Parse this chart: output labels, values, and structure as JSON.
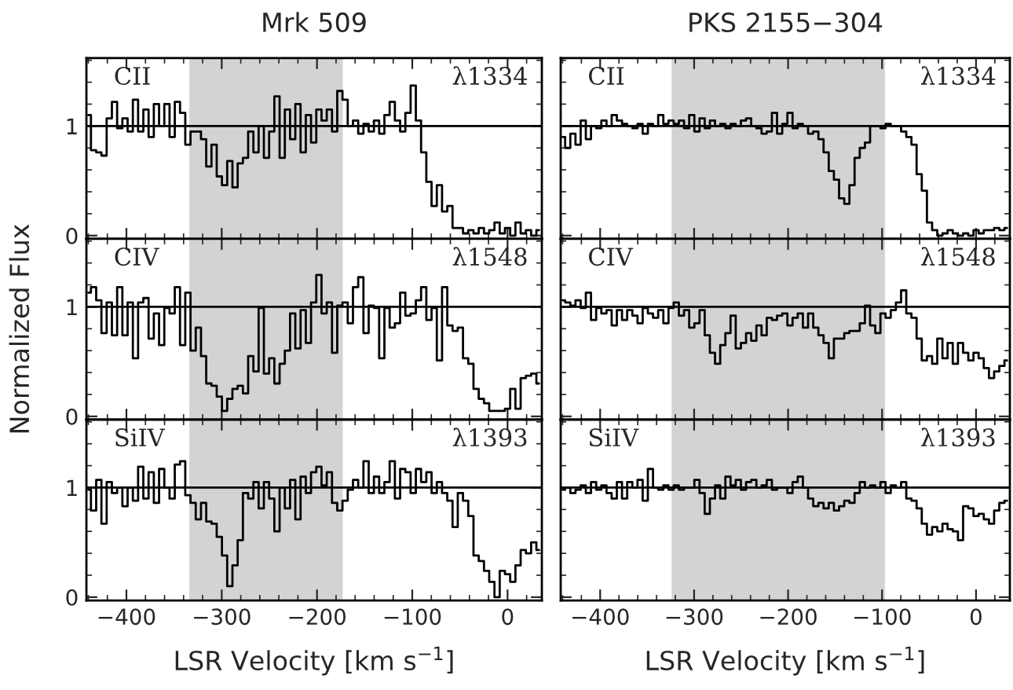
{
  "chart_data": [
    {
      "type": "step",
      "title": "Mrk 509",
      "tick_labels": "y",
      "xlim": [
        -442,
        36
      ],
      "ylim": [
        -0.03,
        1.62
      ],
      "xticks": [
        -400,
        -300,
        -200,
        -100,
        0
      ],
      "yticks": [
        0,
        1
      ],
      "ref_lines": [
        {
          "axis": "y",
          "value": 1,
          "color": "#000000"
        }
      ],
      "bands": [
        {
          "axis": "x",
          "from": -334,
          "to": -173,
          "color": "#d3d3d3"
        }
      ],
      "annotations": [
        "CII",
        "λ1334"
      ],
      "x": [
        -440,
        -434.5,
        -429,
        -423.5,
        -418,
        -412.5,
        -407,
        -401.5,
        -396,
        -390.5,
        -385,
        -379.5,
        -374,
        -368.5,
        -363,
        -357.5,
        -352,
        -346.5,
        -341,
        -335.5,
        -330,
        -324.5,
        -319,
        -313.5,
        -308,
        -302.5,
        -297,
        -291.5,
        -286,
        -280.5,
        -275,
        -269.5,
        -264,
        -258.5,
        -253,
        -247.5,
        -242,
        -236.5,
        -231,
        -225.5,
        -220,
        -214.5,
        -209,
        -203.5,
        -198,
        -192.5,
        -187,
        -181.5,
        -176,
        -170.5,
        -165,
        -159.5,
        -154,
        -148.5,
        -143,
        -137.5,
        -132,
        -126.5,
        -121,
        -115.5,
        -110,
        -104.5,
        -99,
        -93.5,
        -88,
        -82.5,
        -77,
        -71.5,
        -66,
        -60.5,
        -55,
        -49.5,
        -44,
        -38.5,
        -33,
        -27.5,
        -22,
        -16.5,
        -11,
        -5.5,
        0,
        5.5,
        11,
        16.5,
        22,
        27.5,
        33
      ],
      "series": [
        {
          "color": "#000000",
          "values": [
            1.1,
            0.78,
            0.76,
            0.73,
            1.07,
            1.22,
            0.98,
            1.07,
            0.95,
            1.24,
            0.95,
            1.15,
            0.9,
            1.2,
            1.0,
            1.2,
            0.9,
            1.22,
            1.12,
            0.83,
            0.95,
            0.95,
            0.88,
            0.63,
            0.83,
            0.54,
            0.46,
            0.68,
            0.44,
            0.66,
            0.71,
            0.95,
            0.76,
            1.0,
            0.71,
            0.95,
            1.27,
            0.71,
            1.15,
            0.88,
            1.2,
            0.76,
            1.1,
            0.85,
            1.15,
            1.05,
            1.15,
            0.95,
            1.32,
            1.24,
            1.0,
            1.05,
            0.93,
            1.02,
            0.95,
            1.05,
            0.93,
            1.1,
            1.22,
            1.05,
            0.95,
            1.12,
            1.37,
            1.05,
            0.76,
            0.49,
            0.27,
            0.46,
            0.22,
            0.27,
            0.07,
            0.07,
            0.02,
            0.05,
            0.02,
            0.07,
            0.02,
            0.05,
            0.12,
            0.02,
            0.07,
            0.0,
            0.12,
            0.02,
            0.05,
            0.0,
            0.05
          ]
        }
      ]
    },
    {
      "type": "step",
      "title": "PKS 2155−304",
      "tick_labels": false,
      "xlim": [
        -442,
        36
      ],
      "ylim": [
        -0.03,
        1.62
      ],
      "xticks": [
        -400,
        -300,
        -200,
        -100,
        0
      ],
      "yticks": [
        0,
        1
      ],
      "ref_lines": [
        {
          "axis": "y",
          "value": 1,
          "color": "#000000"
        }
      ],
      "bands": [
        {
          "axis": "x",
          "from": -324,
          "to": -97,
          "color": "#d3d3d3"
        }
      ],
      "annotations": [
        "CII",
        "λ1334"
      ],
      "x": [
        -440,
        -434.5,
        -429,
        -423.5,
        -418,
        -412.5,
        -407,
        -401.5,
        -396,
        -390.5,
        -385,
        -379.5,
        -374,
        -368.5,
        -363,
        -357.5,
        -352,
        -346.5,
        -341,
        -335.5,
        -330,
        -324.5,
        -319,
        -313.5,
        -308,
        -302.5,
        -297,
        -291.5,
        -286,
        -280.5,
        -275,
        -269.5,
        -264,
        -258.5,
        -253,
        -247.5,
        -242,
        -236.5,
        -231,
        -225.5,
        -220,
        -214.5,
        -209,
        -203.5,
        -198,
        -192.5,
        -187,
        -181.5,
        -176,
        -170.5,
        -165,
        -159.5,
        -154,
        -148.5,
        -143,
        -137.5,
        -132,
        -126.5,
        -121,
        -115.5,
        -110,
        -104.5,
        -99,
        -93.5,
        -88,
        -82.5,
        -77,
        -71.5,
        -66,
        -60.5,
        -55,
        -49.5,
        -44,
        -38.5,
        -33,
        -27.5,
        -22,
        -16.5,
        -11,
        -5.5,
        0,
        5.5,
        11,
        16.5,
        22,
        27.5,
        33
      ],
      "series": [
        {
          "color": "#000000",
          "values": [
            0.9,
            0.8,
            0.93,
            0.83,
            1.05,
            0.88,
            1.0,
            0.98,
            1.05,
            1.0,
            1.1,
            1.05,
            1.02,
            1.0,
            0.98,
            1.02,
            0.93,
            1.02,
            1.0,
            1.1,
            1.02,
            1.05,
            1.02,
            1.05,
            0.98,
            1.1,
            0.95,
            1.07,
            0.98,
            1.05,
            1.0,
            1.02,
            0.98,
            1.02,
            1.0,
            1.05,
            1.07,
            1.0,
            0.98,
            0.93,
            0.95,
            1.12,
            0.93,
            1.02,
            1.12,
            0.98,
            1.02,
            1.0,
            0.93,
            0.95,
            0.88,
            0.76,
            0.59,
            0.51,
            0.34,
            0.29,
            0.46,
            0.71,
            0.8,
            0.85,
            1.0,
            1.0,
            0.98,
            1.02,
            1.0,
            1.0,
            0.95,
            0.9,
            0.83,
            0.56,
            0.41,
            0.12,
            0.05,
            0.0,
            0.02,
            0.05,
            0.02,
            0.0,
            0.02,
            0.0,
            0.05,
            0.02,
            0.05,
            0.05,
            0.07,
            0.05,
            0.07
          ]
        }
      ]
    },
    {
      "type": "step",
      "ylabel": "Normalized Flux",
      "tick_labels": "y",
      "xlim": [
        -442,
        36
      ],
      "ylim": [
        -0.03,
        1.62
      ],
      "xticks": [
        -400,
        -300,
        -200,
        -100,
        0
      ],
      "yticks": [
        0,
        1
      ],
      "ref_lines": [
        {
          "axis": "y",
          "value": 1,
          "color": "#000000"
        }
      ],
      "bands": [
        {
          "axis": "x",
          "from": -334,
          "to": -173,
          "color": "#d3d3d3"
        }
      ],
      "annotations": [
        "CIV",
        "λ1548"
      ],
      "x": [
        -440,
        -434.5,
        -429,
        -423.5,
        -418,
        -412.5,
        -407,
        -401.5,
        -396,
        -390.5,
        -385,
        -379.5,
        -374,
        -368.5,
        -363,
        -357.5,
        -352,
        -346.5,
        -341,
        -335.5,
        -330,
        -324.5,
        -319,
        -313.5,
        -308,
        -302.5,
        -297,
        -291.5,
        -286,
        -280.5,
        -275,
        -269.5,
        -264,
        -258.5,
        -253,
        -247.5,
        -242,
        -236.5,
        -231,
        -225.5,
        -220,
        -214.5,
        -209,
        -203.5,
        -198,
        -192.5,
        -187,
        -181.5,
        -176,
        -170.5,
        -165,
        -159.5,
        -154,
        -148.5,
        -143,
        -137.5,
        -132,
        -126.5,
        -121,
        -115.5,
        -110,
        -104.5,
        -99,
        -93.5,
        -88,
        -82.5,
        -77,
        -71.5,
        -66,
        -60.5,
        -55,
        -49.5,
        -44,
        -38.5,
        -33,
        -27.5,
        -22,
        -16.5,
        -11,
        -5.5,
        0,
        5.5,
        11,
        16.5,
        22,
        27.5,
        33
      ],
      "series": [
        {
          "color": "#000000",
          "values": [
            1.13,
            1.18,
            1.06,
            0.76,
            1.04,
            0.74,
            1.18,
            0.74,
            1.04,
            0.53,
            1.04,
            1.08,
            0.71,
            0.94,
            0.65,
            0.99,
            0.94,
            1.18,
            0.65,
            1.13,
            0.6,
            0.81,
            0.55,
            0.3,
            0.28,
            0.18,
            0.05,
            0.16,
            0.25,
            0.28,
            0.21,
            0.55,
            0.41,
            0.99,
            0.39,
            0.53,
            0.3,
            0.48,
            0.6,
            0.94,
            0.62,
            0.97,
            0.67,
            1.04,
            1.29,
            0.94,
            1.04,
            0.58,
            1.01,
            1.04,
            0.85,
            1.18,
            1.27,
            0.76,
            1.01,
            0.99,
            0.53,
            0.99,
            0.81,
            0.85,
            1.13,
            0.92,
            0.94,
            1.06,
            1.18,
            0.88,
            0.99,
            0.51,
            1.18,
            0.83,
            0.78,
            0.81,
            0.53,
            0.48,
            0.25,
            0.16,
            0.12,
            0.05,
            0.05,
            0.05,
            0.07,
            0.25,
            0.07,
            0.35,
            0.37,
            0.39,
            0.3
          ]
        }
      ]
    },
    {
      "type": "step",
      "tick_labels": false,
      "xlim": [
        -442,
        36
      ],
      "ylim": [
        -0.03,
        1.62
      ],
      "xticks": [
        -400,
        -300,
        -200,
        -100,
        0
      ],
      "yticks": [
        0,
        1
      ],
      "ref_lines": [
        {
          "axis": "y",
          "value": 1,
          "color": "#000000"
        }
      ],
      "bands": [
        {
          "axis": "x",
          "from": -324,
          "to": -97,
          "color": "#d3d3d3"
        }
      ],
      "annotations": [
        "CIV",
        "λ1548"
      ],
      "x": [
        -440,
        -434.5,
        -429,
        -423.5,
        -418,
        -412.5,
        -407,
        -401.5,
        -396,
        -390.5,
        -385,
        -379.5,
        -374,
        -368.5,
        -363,
        -357.5,
        -352,
        -346.5,
        -341,
        -335.5,
        -330,
        -324.5,
        -319,
        -313.5,
        -308,
        -302.5,
        -297,
        -291.5,
        -286,
        -280.5,
        -275,
        -269.5,
        -264,
        -258.5,
        -253,
        -247.5,
        -242,
        -236.5,
        -231,
        -225.5,
        -220,
        -214.5,
        -209,
        -203.5,
        -198,
        -192.5,
        -187,
        -181.5,
        -176,
        -170.5,
        -165,
        -159.5,
        -154,
        -148.5,
        -143,
        -137.5,
        -132,
        -126.5,
        -121,
        -115.5,
        -110,
        -104.5,
        -99,
        -93.5,
        -88,
        -82.5,
        -77,
        -71.5,
        -66,
        -60.5,
        -55,
        -49.5,
        -44,
        -38.5,
        -33,
        -27.5,
        -22,
        -16.5,
        -11,
        -5.5,
        0,
        5.5,
        11,
        16.5,
        22,
        27.5,
        33
      ],
      "series": [
        {
          "color": "#000000",
          "values": [
            1.06,
            1.04,
            1.01,
            1.06,
            0.99,
            1.13,
            0.88,
            0.99,
            0.94,
            0.97,
            0.83,
            0.97,
            0.88,
            0.97,
            0.92,
            0.85,
            0.99,
            0.94,
            0.9,
            0.97,
            0.85,
            0.99,
            1.04,
            0.92,
            0.97,
            0.81,
            0.85,
            0.97,
            0.74,
            0.58,
            0.48,
            0.65,
            0.76,
            0.92,
            0.62,
            0.67,
            0.76,
            0.69,
            0.83,
            0.74,
            0.9,
            0.88,
            0.92,
            0.94,
            0.83,
            0.9,
            0.94,
            0.81,
            0.94,
            0.81,
            0.74,
            0.67,
            0.53,
            0.71,
            0.71,
            0.76,
            0.78,
            0.78,
            0.85,
            1.01,
            0.83,
            0.76,
            0.94,
            0.9,
            0.97,
            1.04,
            1.15,
            0.94,
            0.9,
            0.71,
            0.51,
            0.55,
            0.48,
            0.71,
            0.53,
            0.67,
            0.48,
            0.67,
            0.58,
            0.51,
            0.58,
            0.53,
            0.44,
            0.35,
            0.41,
            0.46,
            0.51
          ]
        }
      ]
    },
    {
      "type": "step",
      "xlabel": "LSR Velocity [km s$^{−1}$]",
      "xlim": [
        -442,
        36
      ],
      "ylim": [
        -0.03,
        1.62
      ],
      "xticks": [
        {
          "value": -400,
          "label": "−400"
        },
        {
          "value": -300,
          "label": "−300"
        },
        {
          "value": -200,
          "label": "−200"
        },
        {
          "value": -100,
          "label": "−100"
        },
        0
      ],
      "yticks": [
        0,
        1
      ],
      "ref_lines": [
        {
          "axis": "y",
          "value": 1,
          "color": "#000000"
        }
      ],
      "bands": [
        {
          "axis": "x",
          "from": -334,
          "to": -173,
          "color": "#d3d3d3"
        }
      ],
      "annotations": [
        "SiIV",
        "λ1393"
      ],
      "x": [
        -440,
        -434.5,
        -429,
        -423.5,
        -418,
        -412.5,
        -407,
        -401.5,
        -396,
        -390.5,
        -385,
        -379.5,
        -374,
        -368.5,
        -363,
        -357.5,
        -352,
        -346.5,
        -341,
        -335.5,
        -330,
        -324.5,
        -319,
        -313.5,
        -308,
        -302.5,
        -297,
        -291.5,
        -286,
        -280.5,
        -275,
        -269.5,
        -264,
        -258.5,
        -253,
        -247.5,
        -242,
        -236.5,
        -231,
        -225.5,
        -220,
        -214.5,
        -209,
        -203.5,
        -198,
        -192.5,
        -187,
        -181.5,
        -176,
        -170.5,
        -165,
        -159.5,
        -154,
        -148.5,
        -143,
        -137.5,
        -132,
        -126.5,
        -121,
        -115.5,
        -110,
        -104.5,
        -99,
        -93.5,
        -88,
        -82.5,
        -77,
        -71.5,
        -66,
        -60.5,
        -55,
        -49.5,
        -44,
        -38.5,
        -33,
        -27.5,
        -22,
        -16.5,
        -11,
        -5.5,
        0,
        5.5,
        11,
        16.5,
        22,
        27.5,
        33
      ],
      "series": [
        {
          "color": "#000000",
          "values": [
            0.98,
            0.79,
            1.07,
            0.67,
            1.05,
            0.95,
            1.0,
            0.83,
            1.0,
            0.88,
            1.19,
            0.9,
            1.14,
            0.86,
            1.17,
            1.0,
            0.9,
            1.21,
            1.24,
            0.93,
            0.86,
            0.71,
            0.86,
            0.69,
            0.67,
            0.55,
            0.38,
            0.1,
            0.29,
            0.52,
            0.95,
            0.9,
            1.05,
            0.81,
            1.05,
            0.9,
            0.6,
            1.0,
            0.81,
            1.07,
            0.71,
            1.1,
            0.95,
            1.14,
            1.19,
            1.02,
            1.14,
            0.86,
            0.79,
            0.88,
            0.98,
            1.07,
            1.0,
            1.24,
            0.95,
            1.1,
            0.95,
            1.05,
            1.24,
            0.9,
            1.17,
            1.14,
            0.95,
            1.17,
            1.05,
            1.14,
            0.95,
            1.05,
            0.95,
            0.88,
            0.64,
            0.95,
            0.88,
            0.74,
            0.38,
            0.33,
            0.24,
            0.14,
            0.0,
            0.24,
            0.21,
            0.14,
            0.29,
            0.43,
            0.4,
            0.5,
            0.43
          ]
        }
      ]
    },
    {
      "type": "step",
      "xlabel": "LSR Velocity [km s$^{−1}$]",
      "tick_labels": "x",
      "xlim": [
        -442,
        36
      ],
      "ylim": [
        -0.03,
        1.62
      ],
      "xticks": [
        {
          "value": -400,
          "label": "−400"
        },
        {
          "value": -300,
          "label": "−300"
        },
        {
          "value": -200,
          "label": "−200"
        },
        {
          "value": -100,
          "label": "−100"
        },
        0
      ],
      "yticks": [
        0,
        1
      ],
      "ref_lines": [
        {
          "axis": "y",
          "value": 1,
          "color": "#000000"
        }
      ],
      "bands": [
        {
          "axis": "x",
          "from": -324,
          "to": -97,
          "color": "#d3d3d3"
        }
      ],
      "annotations": [
        "SiIV",
        "λ1393"
      ],
      "x": [
        -440,
        -434.5,
        -429,
        -423.5,
        -418,
        -412.5,
        -407,
        -401.5,
        -396,
        -390.5,
        -385,
        -379.5,
        -374,
        -368.5,
        -363,
        -357.5,
        -352,
        -346.5,
        -341,
        -335.5,
        -330,
        -324.5,
        -319,
        -313.5,
        -308,
        -302.5,
        -297,
        -291.5,
        -286,
        -280.5,
        -275,
        -269.5,
        -264,
        -258.5,
        -253,
        -247.5,
        -242,
        -236.5,
        -231,
        -225.5,
        -220,
        -214.5,
        -209,
        -203.5,
        -198,
        -192.5,
        -187,
        -181.5,
        -176,
        -170.5,
        -165,
        -159.5,
        -154,
        -148.5,
        -143,
        -137.5,
        -132,
        -126.5,
        -121,
        -115.5,
        -110,
        -104.5,
        -99,
        -93.5,
        -88,
        -82.5,
        -77,
        -71.5,
        -66,
        -60.5,
        -55,
        -49.5,
        -44,
        -38.5,
        -33,
        -27.5,
        -22,
        -16.5,
        -11,
        -5.5,
        0,
        5.5,
        11,
        16.5,
        22,
        27.5,
        33
      ],
      "series": [
        {
          "color": "#000000",
          "values": [
            0.98,
            1.0,
            0.95,
            0.98,
            1.02,
            0.95,
            1.05,
            0.98,
            1.02,
            0.95,
            0.9,
            1.05,
            0.9,
            1.05,
            1.0,
            1.07,
            0.88,
            1.17,
            1.0,
            0.98,
            1.02,
            0.98,
            1.02,
            0.98,
            1.0,
            1.0,
            1.07,
            0.95,
            0.76,
            0.9,
            1.02,
            0.9,
            1.1,
            1.02,
            1.07,
            0.98,
            1.05,
            1.07,
            1.0,
            1.02,
            1.07,
            0.98,
            1.0,
            1.0,
            0.95,
            1.05,
            1.1,
            1.0,
            0.9,
            0.83,
            0.86,
            0.81,
            0.86,
            0.79,
            0.83,
            0.88,
            0.86,
            0.95,
            1.05,
            1.0,
            1.02,
            1.0,
            1.05,
            0.95,
            1.02,
            1.0,
            1.05,
            0.9,
            0.88,
            0.81,
            0.67,
            0.57,
            0.64,
            0.6,
            0.67,
            0.62,
            0.6,
            0.52,
            0.83,
            0.81,
            0.74,
            0.76,
            0.71,
            0.67,
            0.79,
            0.86,
            0.88
          ]
        }
      ]
    }
  ]
}
